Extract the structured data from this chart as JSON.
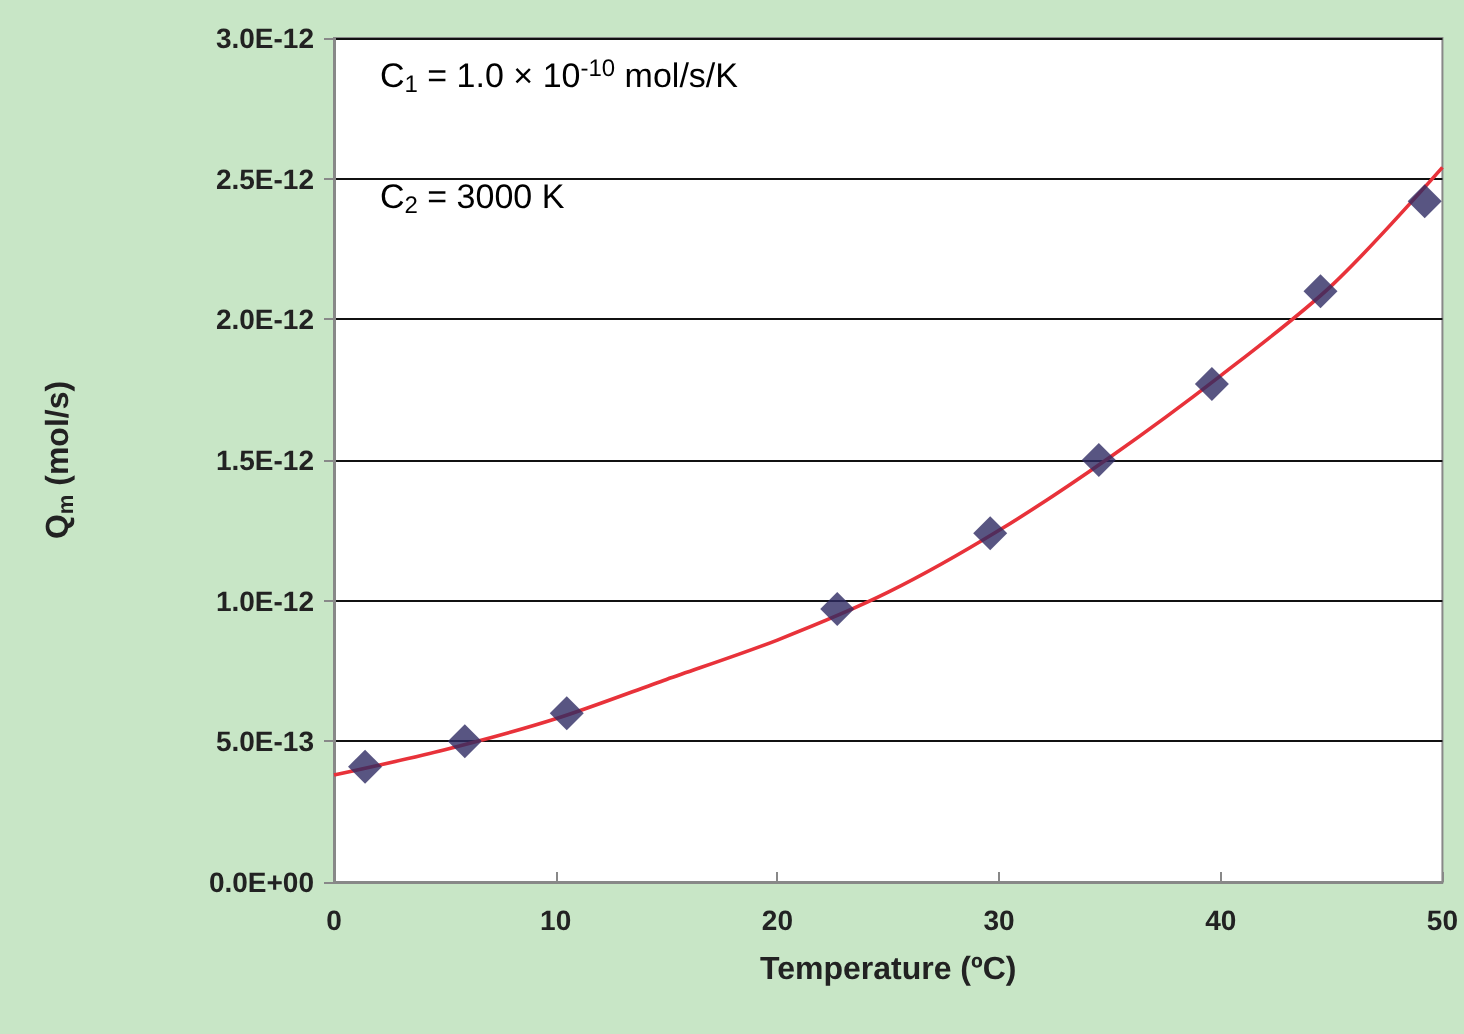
{
  "chart_data": {
    "type": "scatter",
    "xlabel": "Temperature (ºC)",
    "ylabel": "Q$_{m}$ (mol/s)",
    "annotations": [
      "C$_{1}$ = 1.0 × 10$^{-10}$ mol/s/K",
      "C$_{2}$ = 3000 K"
    ],
    "x": [
      1.4,
      5.9,
      10.5,
      22.7,
      29.6,
      34.5,
      39.6,
      44.5,
      49.2
    ],
    "series": [
      {
        "color": "#2e2a63",
        "marker": "diamond",
        "values": [
          4.1e-13,
          5e-13,
          6e-13,
          9.7e-13,
          1.24e-12,
          1.5e-12,
          1.77e-12,
          2.1e-12,
          2.42e-12
        ]
      },
      {
        "type": "line",
        "color": "#e8323a",
        "marker": "none",
        "line_style": "solid",
        "x": [
          0,
          5,
          10,
          15,
          20,
          25,
          30,
          35,
          40,
          45,
          50
        ],
        "values": [
          3.8e-13,
          4.7e-13,
          5.8e-13,
          7.2e-13,
          8.6e-13,
          1.03e-12,
          1.25e-12,
          1.51e-12,
          1.8e-12,
          2.12e-12,
          2.54e-12
        ]
      }
    ],
    "xlim": [
      0,
      50
    ],
    "xticks": [
      0,
      10,
      20,
      30,
      40,
      50
    ],
    "ylim": [
      0,
      3e-12
    ],
    "yticks": [
      {
        "value": 0,
        "label": "0.0E+00"
      },
      {
        "value": 5e-13,
        "label": "5.0E-13"
      },
      {
        "value": 1e-12,
        "label": "1.0E-12"
      },
      {
        "value": 1.5e-12,
        "label": "1.5E-12"
      },
      {
        "value": 2e-12,
        "label": "2.0E-12"
      },
      {
        "value": 2.5e-12,
        "label": "2.5E-12"
      },
      {
        "value": 3e-12,
        "label": "3.0E-12"
      }
    ],
    "grid": "y"
  }
}
